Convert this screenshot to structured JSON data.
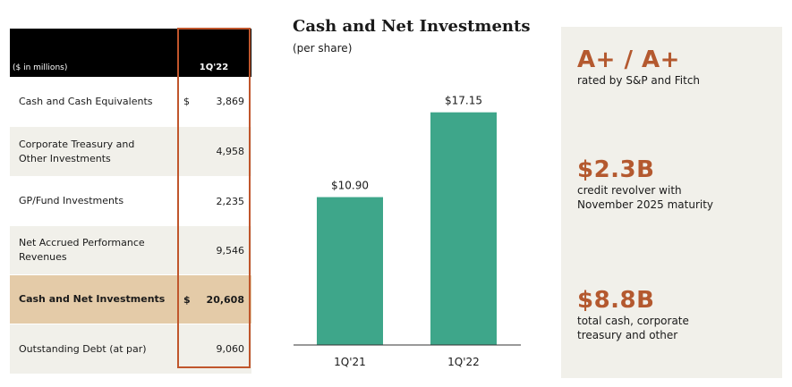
{
  "table": {
    "header_label": "($ in millions)",
    "column_label": "1Q'22",
    "rows": [
      {
        "name": "Cash and Cash Equivalents",
        "currency": "$",
        "value": "3,869"
      },
      {
        "name": "Corporate Treasury and\nOther Investments",
        "currency": "",
        "value": "4,958"
      },
      {
        "name": "GP/Fund Investments",
        "currency": "",
        "value": "2,235"
      },
      {
        "name": "Net Accrued Performance\nRevenues",
        "currency": "",
        "value": "9,546"
      },
      {
        "name": "Cash and Net Investments",
        "currency": "$",
        "value": "20,608"
      },
      {
        "name": "Outstanding Debt (at par)",
        "currency": "",
        "value": "9,060"
      }
    ]
  },
  "chart": {
    "title": "Cash and Net Investments",
    "subtitle": "(per share)"
  },
  "chart_data": {
    "type": "bar",
    "categories": [
      "1Q'21",
      "1Q'22"
    ],
    "values": [
      10.9,
      17.15
    ],
    "value_labels": [
      "$10.90",
      "$17.15"
    ],
    "title": "Cash and Net Investments",
    "subtitle": "(per share)",
    "xlabel": "",
    "ylabel": "",
    "ylim": [
      0,
      19.5
    ],
    "grid": false,
    "color": "#3ea68a"
  },
  "stats": [
    {
      "big": "A+ / A+",
      "desc": "rated by S&P and Fitch"
    },
    {
      "big": "$2.3B",
      "desc": "credit revolver with\nNovember 2025 maturity"
    },
    {
      "big": "$8.8B",
      "desc": "total cash, corporate\ntreasury and other"
    }
  ],
  "colors": {
    "accent": "#c0562c",
    "bar": "#3ea68a",
    "highlight_row": "#e4cba8",
    "alt_row": "#f1f0ea"
  }
}
